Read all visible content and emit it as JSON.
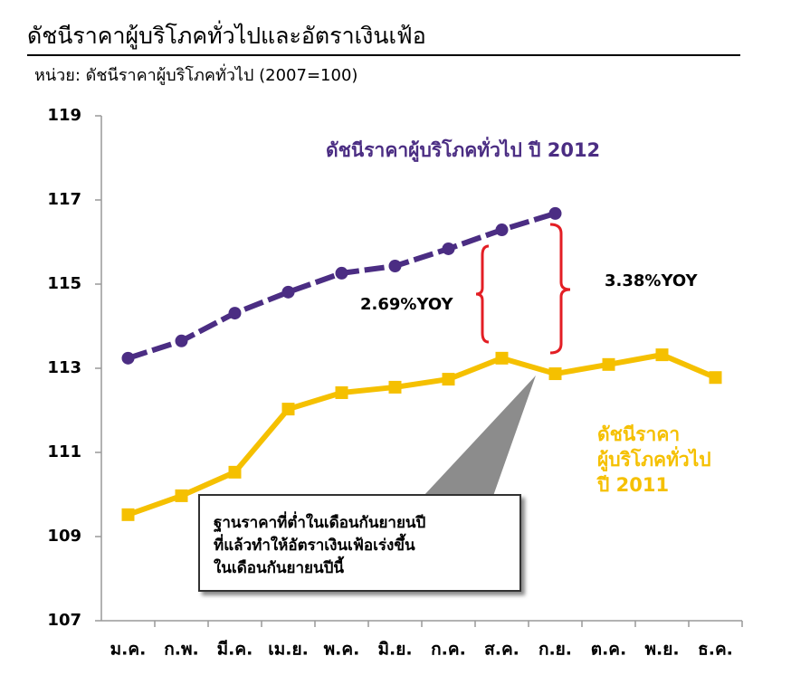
{
  "chart_data": {
    "type": "line",
    "title": "ดัชนีราคาผู้บริโภคทั่วไปและอัตราเงินเฟ้อ",
    "subtitle": "หน่วย: ดัชนีราคาผู้บริโภคทั่วไป (2007=100)",
    "categories": [
      "ม.ค.",
      "ก.พ.",
      "มี.ค.",
      "เม.ย.",
      "พ.ค.",
      "มิ.ย.",
      "ก.ค.",
      "ส.ค.",
      "ก.ย.",
      "ต.ค.",
      "พ.ย.",
      "ธ.ค."
    ],
    "series": [
      {
        "name": "ดัชนีราคาผู้บริโภคทั่วไป ปี 2012",
        "color": "#4b2d83",
        "values": [
          113.24,
          113.65,
          114.31,
          114.81,
          115.26,
          115.43,
          115.84,
          116.29,
          116.68,
          null,
          null,
          null
        ]
      },
      {
        "name": "ดัชนีราคา\nผู้บริโภคทั่วไป\nปี 2011",
        "color": "#f5c000",
        "values": [
          109.52,
          109.97,
          110.53,
          112.03,
          112.42,
          112.55,
          112.74,
          113.24,
          112.87,
          113.09,
          113.32,
          112.78
        ]
      }
    ],
    "ylim": [
      107,
      119
    ],
    "yticks": [
      107,
      109,
      111,
      113,
      115,
      117,
      119
    ],
    "annotations": [
      "2.69%YOY",
      "3.38%YOY",
      "ฐานราคาที่ต่ำในเดือนกันยายนปี\nที่แล้วทำให้อัตราเงินเฟ้อเร่งขึ้น\nในเดือนกันยายนปีนี้"
    ]
  }
}
